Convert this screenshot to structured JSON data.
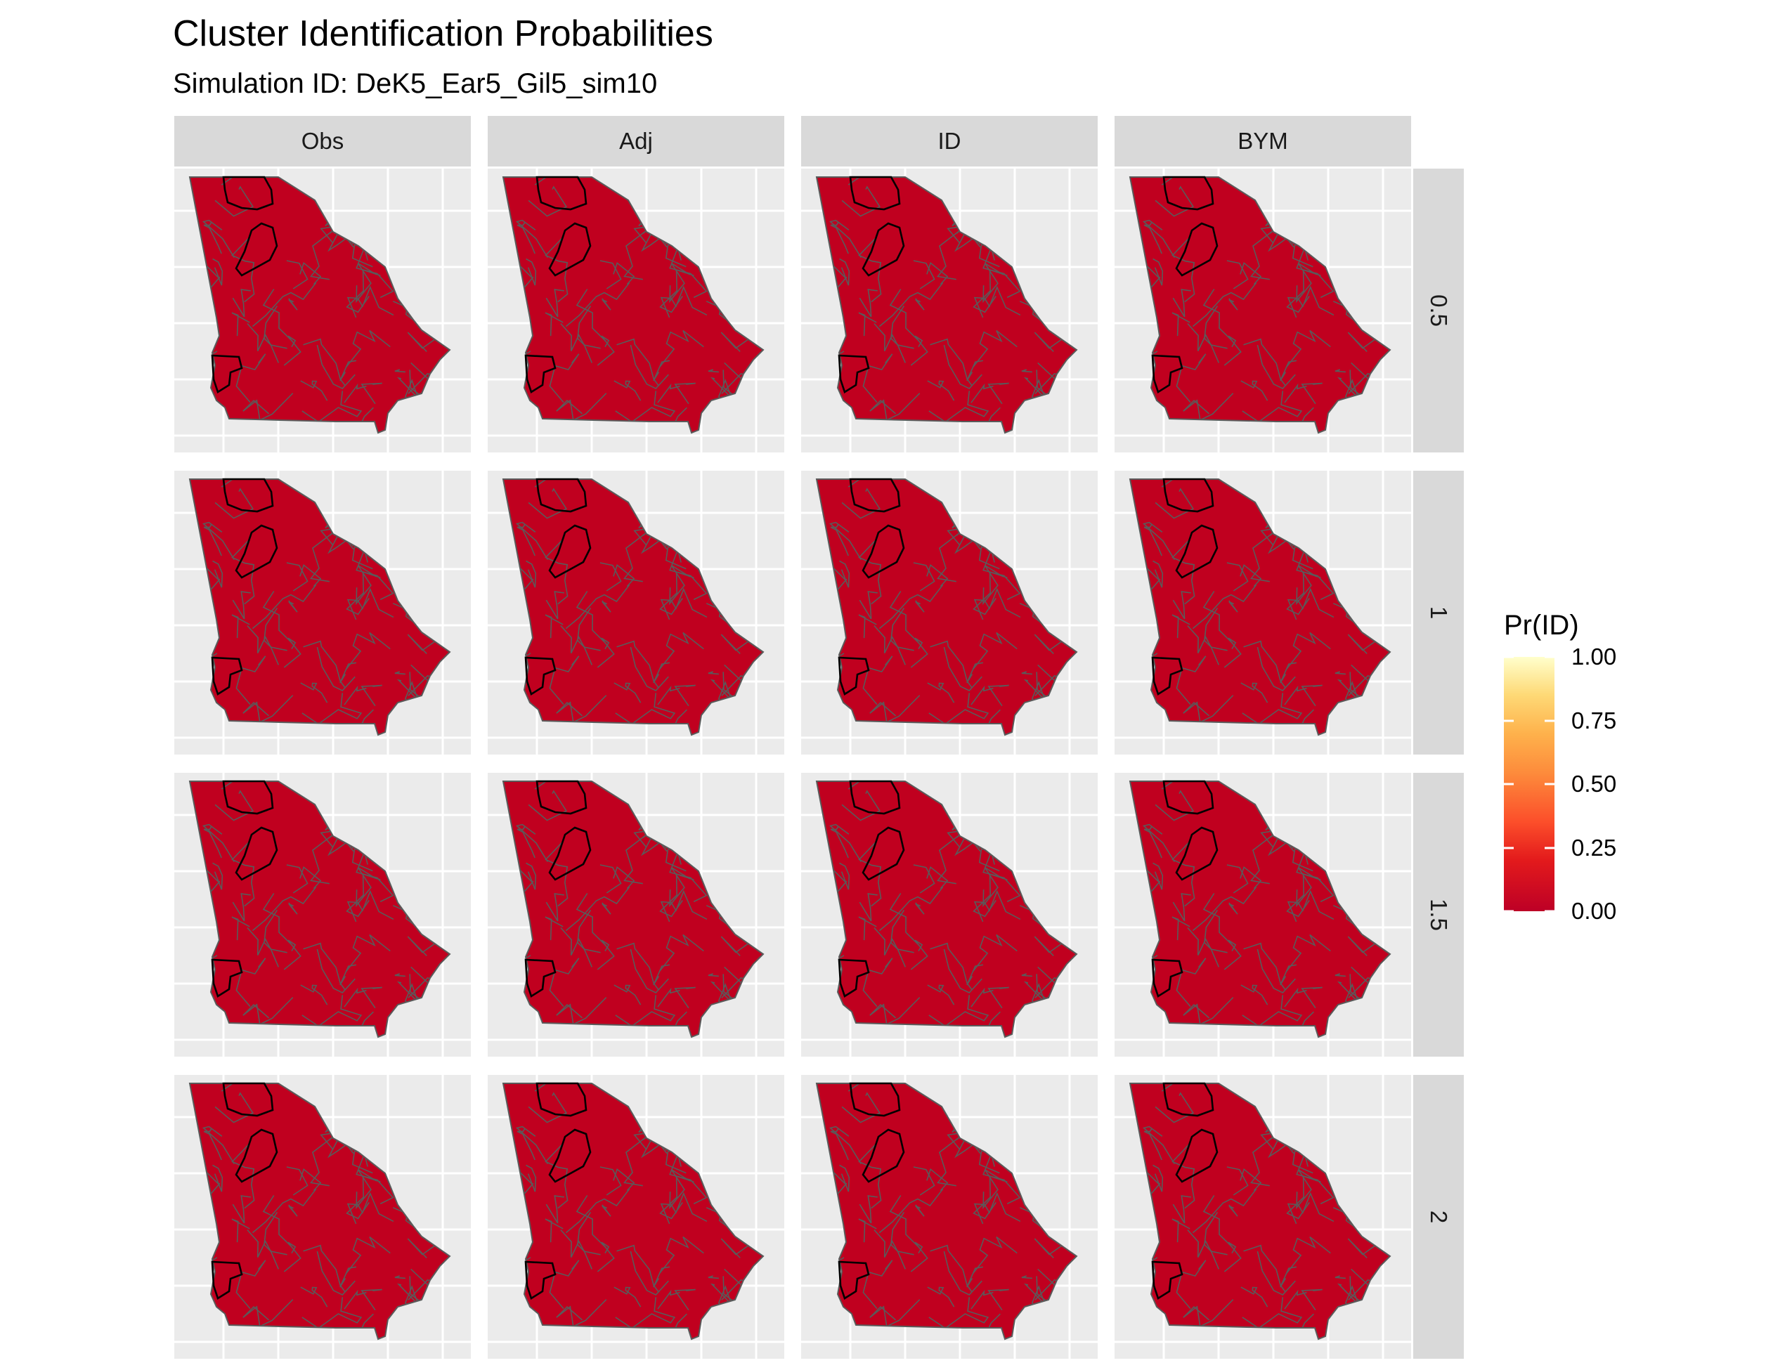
{
  "title": "Cluster Identification Probabilities",
  "subtitle": "Simulation ID: DeK5_Ear5_Gil5_sim10",
  "columns": [
    "Obs",
    "Adj",
    "ID",
    "BYM"
  ],
  "rows": [
    "0.5",
    "1",
    "1.5",
    "2"
  ],
  "legend": {
    "title": "Pr(ID)",
    "ticks": [
      "1.00",
      "0.75",
      "0.50",
      "0.25",
      "0.00"
    ],
    "tick_values": [
      1.0,
      0.75,
      0.5,
      0.25,
      0.0
    ],
    "colors": {
      "low": "#bd0026",
      "high": "#ffffcc"
    }
  },
  "map": {
    "region": "Georgia counties",
    "fill_value": 0.0,
    "fill_color": "#c0001f",
    "county_border_color": "#5a5a5a",
    "cluster_border_color": "#000000",
    "panel_background": "#ebebeb",
    "gridline_color": "#ffffff"
  }
}
